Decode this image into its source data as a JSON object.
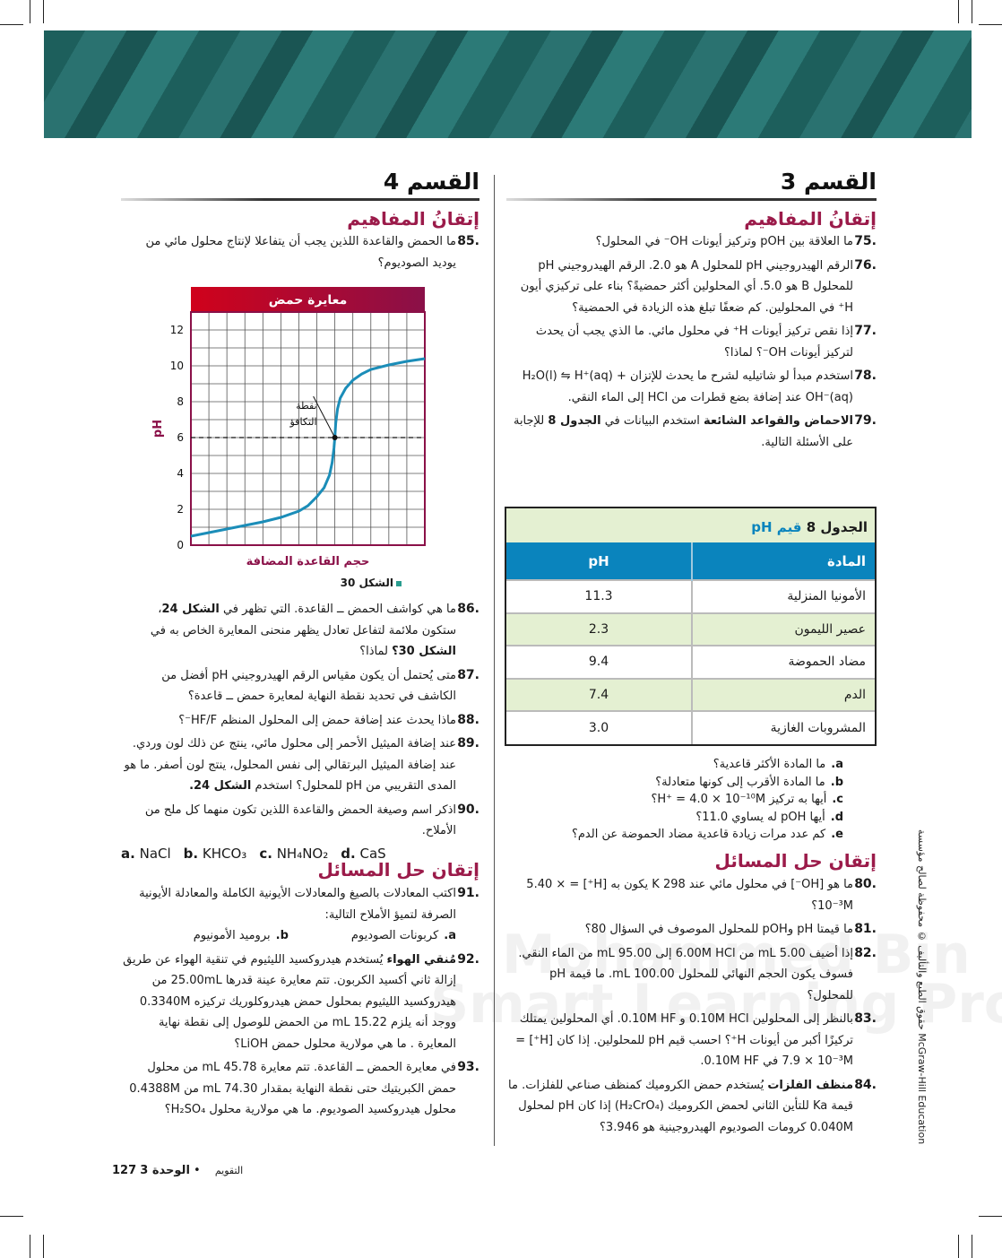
{
  "watermark": "Mohammed Bin Rashid Smart Learning Program",
  "colors": {
    "heading": "#9b1b4a",
    "table_header": "#0a84bd",
    "table_alt_row": "#e4f0d2",
    "curve": "#1b8db8",
    "banner": "#1d5f5c"
  },
  "right": {
    "section_title": "القسم 3",
    "concepts_title": "إتقانُ المفاهيم",
    "questions": [
      {
        "num": "75.",
        "parts": [
          {
            "t": "ما العلاقة بين pOH وتركيز أيونات OH⁻ في المحلول؟"
          }
        ]
      },
      {
        "num": "76.",
        "parts": [
          {
            "t": "الرقم الهيدروجيني pH للمحلول A هو 2.0. الرقم الهيدروجيني pH للمحلول B هو 5.0. أي المحلولين أكثر حمضيةً؟ بناء على تركيزي أيون H⁺ في المحلولين. كم ضعفًا تبلغ هذه الزيادة في الحمضية؟"
          }
        ]
      },
      {
        "num": "77.",
        "parts": [
          {
            "t": "إذا نقص تركيز أيونات H⁺ في محلول مائي. ما الذي يجب أن يحدث لتركيز أيونات OH⁻؟ لماذا؟"
          }
        ]
      },
      {
        "num": "78.",
        "parts": [
          {
            "t": "استخدم مبدأ لو شاتيليه لشرح ما يحدث للإتزان H₂O(l) ⇋ H⁺(aq) + OH⁻(aq) عند إضافة بضع قطرات من HCl إلى الماء النقي."
          }
        ]
      },
      {
        "num": "79.",
        "parts": [
          {
            "t": "الاحماض والقواعد الشائعة",
            "b": true
          },
          {
            "t": " استخدم البيانات في "
          },
          {
            "t": "الجدول 8",
            "b": true
          },
          {
            "t": " للإجابة على الأسئلة التالية."
          }
        ]
      }
    ],
    "table": {
      "title_bold": "الجدول 8",
      "title_rest": "قيم pH",
      "headers": [
        "المادة",
        "pH"
      ],
      "rows": [
        [
          "الأمونيا المنزلية",
          "11.3"
        ],
        [
          "عصير الليمون",
          "2.3"
        ],
        [
          "مضاد الحموضة",
          "9.4"
        ],
        [
          "الدم",
          "7.4"
        ],
        [
          "المشروبات الغازية",
          "3.0"
        ]
      ]
    },
    "sub_questions": [
      {
        "l": "a.",
        "t": "ما المادة الأكثر قاعدية؟"
      },
      {
        "l": "b.",
        "t": "ما المادة الأقرب إلى كونها متعادلة؟"
      },
      {
        "l": "c.",
        "t": "أيها به تركيز H⁺ = 4.0 × 10⁻¹⁰M؟"
      },
      {
        "l": "d.",
        "t": "أيها pOH له يساوي 11.0؟"
      },
      {
        "l": "e.",
        "t": "كم عدد مرات زيادة قاعدية مضاد الحموضة عن الدم؟"
      }
    ],
    "problems_title": "إتقان حل المسائل",
    "problems": [
      {
        "num": "80.",
        "parts": [
          {
            "t": "ما هو [OH⁻] في محلول مائي عند 298 K يكون به [H⁺] = 5.40 × 10⁻³M؟"
          }
        ]
      },
      {
        "num": "81.",
        "parts": [
          {
            "t": "ما قيمتا pH وpOH للمحلول الموصوف في السؤال 80؟"
          }
        ]
      },
      {
        "num": "82.",
        "parts": [
          {
            "t": "إذا أضيف 5.00 mL من 6.00M HCl إلى 95.00 mL من الماء النقي. فسوف يكون الحجم النهائي للمحلول 100.00 mL. ما قيمة pH للمحلول؟"
          }
        ]
      },
      {
        "num": "83.",
        "parts": [
          {
            "t": "بالنظر إلى المحلولين 0.10M HCl و 0.10M HF. أي المحلولين يمتلك تركيزًا أكبر من أيونات H⁺؟ احسب قيم pH للمحلولين. إذا كان [H⁺] = 7.9 × 10⁻³M في 0.10M HF."
          }
        ]
      },
      {
        "num": "84.",
        "parts": [
          {
            "t": "منظف الفلزات",
            "b": true
          },
          {
            "t": " يُستخدم حمض الكروميك كمنظف صناعي للفلزات. ما قيمة Ka للتأين الثاني لحمض الكروميك (H₂CrO₄) إذا كان pH لمحلول 0.040M كرومات الصوديوم الهيدروجينية هو 3.946؟"
          }
        ]
      }
    ]
  },
  "left": {
    "section_title": "القسم 4",
    "concepts_title": "إتقانُ المفاهيم",
    "q85": {
      "num": "85.",
      "parts": [
        {
          "t": "ما الحمض والقاعدة اللذين يجب أن يتفاعلا لإنتاج محلول مائي من يوديد الصوديوم؟"
        }
      ]
    },
    "figure_caption": "الشكل 30",
    "questions": [
      {
        "num": "86.",
        "parts": [
          {
            "t": "ما هي كواشف الحمض ــ القاعدة. التي تظهر في "
          },
          {
            "t": "الشكل 24",
            "b": true
          },
          {
            "t": "، ستكون ملائمة لتفاعل تعادل يظهر منحنى المعايرة الخاص به في "
          },
          {
            "t": "الشكل 30؟",
            "b": true
          },
          {
            "t": " لماذا؟"
          }
        ]
      },
      {
        "num": "87.",
        "parts": [
          {
            "t": "متى يُحتمل أن يكون مقياس الرقم الهيدروجيني pH أفضل من الكاشف في تحديد نقطة النهاية لمعايرة حمض ــ قاعدة؟"
          }
        ]
      },
      {
        "num": "88.",
        "parts": [
          {
            "t": "ماذا يحدث عند إضافة حمض إلى المحلول المنظم HF/F⁻؟"
          }
        ]
      },
      {
        "num": "89.",
        "parts": [
          {
            "t": "عند إضافة الميثيل الأحمر إلى محلول مائي، ينتج عن ذلك لون وردي. عند إضافة الميثيل البرتقالي إلى نفس المحلول، ينتج لون أصفر. ما هو المدى التقريبي من pH للمحلول؟ استخدم "
          },
          {
            "t": "الشكل 24.",
            "b": true
          }
        ]
      },
      {
        "num": "90.",
        "parts": [
          {
            "t": "اذكر اسم وصيغة الحمض والقاعدة اللذين تكون منهما كل ملح من الأملاح."
          }
        ]
      }
    ],
    "salts": [
      {
        "l": "a.",
        "t": "NaCl"
      },
      {
        "l": "b.",
        "t": "KHCO₃"
      },
      {
        "l": "c.",
        "t": "NH₄NO₂"
      },
      {
        "l": "d.",
        "t": "CaS"
      }
    ],
    "problems_title": "إتقان حل المسائل",
    "problems": [
      {
        "num": "91.",
        "parts": [
          {
            "t": "اكتب المعادلات بالصيغ والمعادلات الأيونية الكاملة والمعادلة الأيونية الصرفة لتميؤ الأملاح التالية:"
          }
        ],
        "subs": [
          {
            "l": "a.",
            "t": "كربونات الصوديوم"
          },
          {
            "l": "b.",
            "t": "بروميد الأمونيوم"
          }
        ]
      },
      {
        "num": "92.",
        "parts": [
          {
            "t": "مُنقي الهواء",
            "b": true
          },
          {
            "t": " يُستخدم هيدروكسيد الليثيوم في تنقية الهواء عن طريق إزالة ثاني أكسيد الكربون. تتم معايرة عينة قدرها 25.00mL من هيدروكسيد الليثيوم بمحلول حمض هيدروكلوريك تركيزه 0.3340M ووجد أنه يلزم 15.22 mL من الحمض للوصول إلى نقطة نهاية المعايرة . ما هي مولارية محلول حمض LiOH؟"
          }
        ]
      },
      {
        "num": "93.",
        "parts": [
          {
            "t": "في معايرة الحمض ــ القاعدة. تتم معايرة 45.78 mL من محلول حمض الكبريتيك حتى نقطة النهاية بمقدار 74.30 mL من 0.4388M محلول هيدروكسيد الصوديوم. ما هي مولارية محلول H₂SO₄؟"
          }
        ]
      }
    ]
  },
  "chart_data": {
    "type": "line",
    "title": "معايرة حمض",
    "xlabel": "حجم القاعدة المضافة",
    "ylabel": "pH",
    "yticks": [
      "0",
      "2",
      "4",
      "6",
      "8",
      "10",
      "12"
    ],
    "ylim": [
      0,
      13
    ],
    "xlim": [
      0,
      13
    ],
    "grid": true,
    "equivalence_label": [
      "نقطة",
      "التكافؤ"
    ],
    "equivalence_point": {
      "x": 8,
      "y": 6
    },
    "x": [
      0,
      1,
      2,
      3,
      4,
      5,
      6,
      6.5,
      7,
      7.4,
      7.7,
      7.85,
      7.95,
      8,
      8.05,
      8.15,
      8.3,
      8.6,
      9,
      9.5,
      10,
      11,
      12,
      13
    ],
    "y": [
      0.5,
      0.7,
      0.9,
      1.1,
      1.3,
      1.55,
      1.9,
      2.2,
      2.7,
      3.2,
      3.9,
      4.6,
      5.4,
      6,
      6.8,
      7.6,
      8.2,
      8.75,
      9.2,
      9.55,
      9.8,
      10.05,
      10.25,
      10.4
    ]
  },
  "footer": {
    "page": "127",
    "unit": "الوحدة 3",
    "dot": "•",
    "section": "التقويم"
  },
  "side_note": "حقوق الطبع والتأليف © محفوظة لصالح مؤسسة McGraw-Hill Education"
}
